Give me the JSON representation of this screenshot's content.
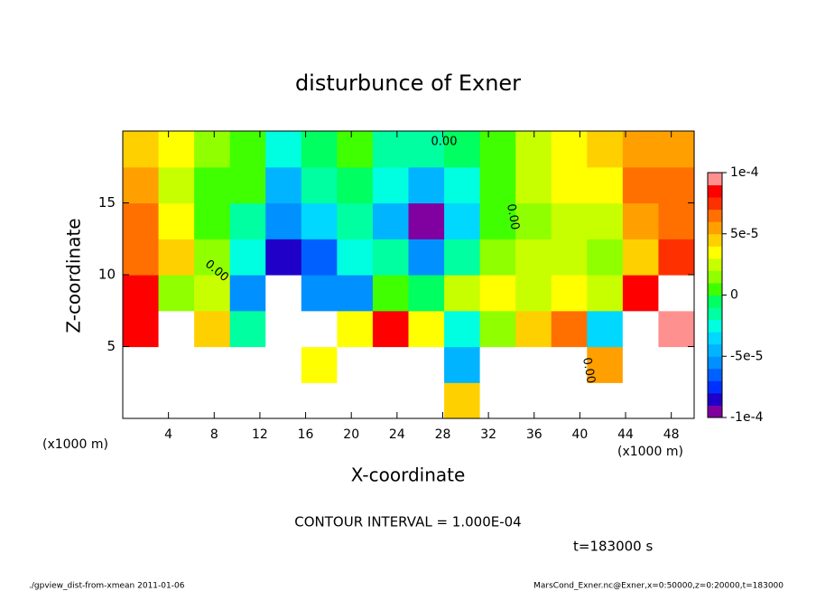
{
  "chart_data": {
    "type": "contour",
    "title": "disturbunce of Exner",
    "x_label": "X-coordinate",
    "y_label": "Z-coordinate",
    "x_unit": "(x1000 m)",
    "y_unit": "(x1000 m)",
    "xlim": [
      0,
      50
    ],
    "ylim": [
      0,
      20
    ],
    "xticks": [
      4,
      8,
      12,
      16,
      20,
      24,
      28,
      32,
      36,
      40,
      44,
      48
    ],
    "yticks": [
      5,
      10,
      15
    ],
    "z": [
      [
        0.00012,
        0.00012,
        -0.00012,
        0.00012,
        -0.00012,
        -0.00012,
        -0.00012,
        0.00012,
        0.00012,
        4e-05,
        0.00012,
        0.00012,
        0.00012,
        0.00012,
        -0.00012,
        -0.00012
      ],
      [
        0.00012,
        0.00012,
        -0.00012,
        0.00012,
        -0.00012,
        3e-05,
        0.00012,
        0.00012,
        0.00012,
        -5e-05,
        0.00012,
        0.00012,
        0.00012,
        5e-05,
        -0.00012,
        -0.00012
      ],
      [
        8e-05,
        0.00012,
        4e-05,
        -2e-05,
        -0.00012,
        0.00012,
        3e-05,
        8e-05,
        3e-05,
        -3e-05,
        1e-05,
        4e-05,
        6e-05,
        -4e-05,
        0.00012,
        9e-05
      ],
      [
        8e-05,
        1e-05,
        2e-05,
        -6e-05,
        0.00012,
        -6e-05,
        -6e-05,
        0,
        -1e-05,
        2e-05,
        3e-05,
        2e-05,
        3e-05,
        2e-05,
        8e-05,
        0.00012
      ],
      [
        6e-05,
        4e-05,
        1e-05,
        -3e-05,
        -8e-05,
        -7e-05,
        -3e-05,
        -2e-05,
        -6e-05,
        -2e-05,
        1e-05,
        2e-05,
        2e-05,
        1e-05,
        4e-05,
        7e-05
      ],
      [
        6e-05,
        3e-05,
        0,
        -2e-05,
        -6e-05,
        -4e-05,
        -2e-05,
        -5e-05,
        -9e-05,
        -4e-05,
        0,
        1e-05,
        2e-05,
        2e-05,
        5e-05,
        6e-05
      ],
      [
        5e-05,
        2e-05,
        0,
        0,
        -5e-05,
        -2e-05,
        -1e-05,
        -3e-05,
        -5e-05,
        -3e-05,
        0,
        2e-05,
        3e-05,
        3e-05,
        6e-05,
        6e-05
      ],
      [
        4e-05,
        3e-05,
        1e-05,
        0,
        -3e-05,
        -1e-05,
        0,
        -2e-05,
        -2e-05,
        -1e-05,
        0,
        2e-05,
        3e-05,
        4e-05,
        5e-05,
        5e-05
      ]
    ],
    "zlim": [
      -0.0001,
      0.0001
    ],
    "colorbar_ticks": [
      {
        "value": -0.0001,
        "label": "-1e-4"
      },
      {
        "value": -5e-05,
        "label": "-5e-5"
      },
      0,
      {
        "value": 5e-05,
        "label": "5e-5"
      },
      {
        "value": 0.0001,
        "label": "1e-4"
      }
    ],
    "colors": [
      "#8000a0",
      "#2000c8",
      "#0030ff",
      "#0060ff",
      "#0090ff",
      "#00b4ff",
      "#00d8ff",
      "#00ffe0",
      "#00ffa0",
      "#00ff60",
      "#40ff00",
      "#90ff00",
      "#c8ff00",
      "#ffff00",
      "#ffd000",
      "#ffa000",
      "#ff7000",
      "#ff3000",
      "#ff0000",
      "#ff9090"
    ],
    "over_color": "#ffffff",
    "contour_labels": [
      "0.00",
      "0.00",
      "0.00",
      "0.00"
    ],
    "contour_interval": "CONTOUR INTERVAL = 1.000E-04",
    "time_label": "t=183000 s",
    "footer_left": "./gpview_dist-from-xmean  2011-01-06",
    "footer_right": "MarsCond_Exner.nc@Exner,x=0:50000,z=0:20000,t=183000"
  }
}
